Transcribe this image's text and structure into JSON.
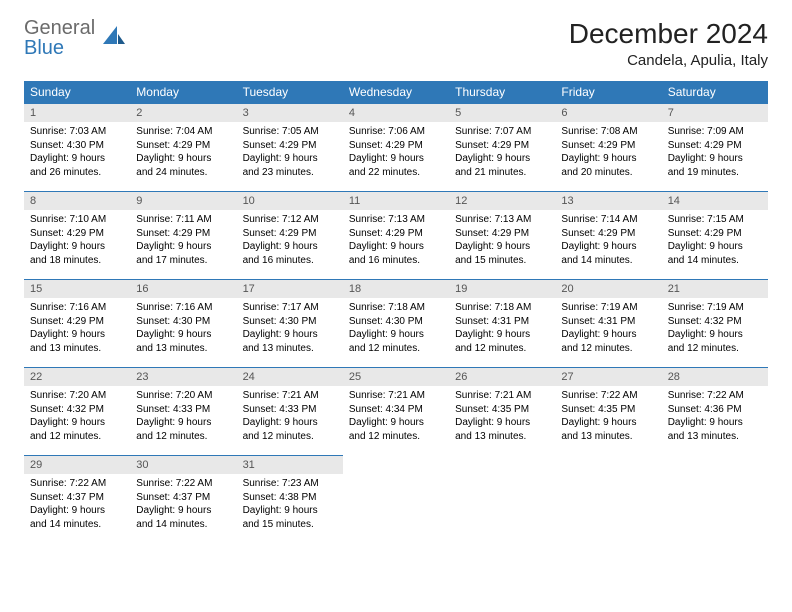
{
  "logo": {
    "text_gray": "General",
    "text_blue": "Blue"
  },
  "header": {
    "title": "December 2024",
    "location": "Candela, Apulia, Italy"
  },
  "colors": {
    "header_bg": "#2f78b7",
    "header_fg": "#ffffff",
    "daynum_bg": "#e8e8e8",
    "daynum_fg": "#555555",
    "border": "#2f78b7",
    "page_bg": "#ffffff",
    "text": "#000000"
  },
  "weekdays": [
    "Sunday",
    "Monday",
    "Tuesday",
    "Wednesday",
    "Thursday",
    "Friday",
    "Saturday"
  ],
  "days": [
    {
      "n": "1",
      "sunrise": "7:03 AM",
      "sunset": "4:30 PM",
      "dl": "9 hours and 26 minutes."
    },
    {
      "n": "2",
      "sunrise": "7:04 AM",
      "sunset": "4:29 PM",
      "dl": "9 hours and 24 minutes."
    },
    {
      "n": "3",
      "sunrise": "7:05 AM",
      "sunset": "4:29 PM",
      "dl": "9 hours and 23 minutes."
    },
    {
      "n": "4",
      "sunrise": "7:06 AM",
      "sunset": "4:29 PM",
      "dl": "9 hours and 22 minutes."
    },
    {
      "n": "5",
      "sunrise": "7:07 AM",
      "sunset": "4:29 PM",
      "dl": "9 hours and 21 minutes."
    },
    {
      "n": "6",
      "sunrise": "7:08 AM",
      "sunset": "4:29 PM",
      "dl": "9 hours and 20 minutes."
    },
    {
      "n": "7",
      "sunrise": "7:09 AM",
      "sunset": "4:29 PM",
      "dl": "9 hours and 19 minutes."
    },
    {
      "n": "8",
      "sunrise": "7:10 AM",
      "sunset": "4:29 PM",
      "dl": "9 hours and 18 minutes."
    },
    {
      "n": "9",
      "sunrise": "7:11 AM",
      "sunset": "4:29 PM",
      "dl": "9 hours and 17 minutes."
    },
    {
      "n": "10",
      "sunrise": "7:12 AM",
      "sunset": "4:29 PM",
      "dl": "9 hours and 16 minutes."
    },
    {
      "n": "11",
      "sunrise": "7:13 AM",
      "sunset": "4:29 PM",
      "dl": "9 hours and 16 minutes."
    },
    {
      "n": "12",
      "sunrise": "7:13 AM",
      "sunset": "4:29 PM",
      "dl": "9 hours and 15 minutes."
    },
    {
      "n": "13",
      "sunrise": "7:14 AM",
      "sunset": "4:29 PM",
      "dl": "9 hours and 14 minutes."
    },
    {
      "n": "14",
      "sunrise": "7:15 AM",
      "sunset": "4:29 PM",
      "dl": "9 hours and 14 minutes."
    },
    {
      "n": "15",
      "sunrise": "7:16 AM",
      "sunset": "4:29 PM",
      "dl": "9 hours and 13 minutes."
    },
    {
      "n": "16",
      "sunrise": "7:16 AM",
      "sunset": "4:30 PM",
      "dl": "9 hours and 13 minutes."
    },
    {
      "n": "17",
      "sunrise": "7:17 AM",
      "sunset": "4:30 PM",
      "dl": "9 hours and 13 minutes."
    },
    {
      "n": "18",
      "sunrise": "7:18 AM",
      "sunset": "4:30 PM",
      "dl": "9 hours and 12 minutes."
    },
    {
      "n": "19",
      "sunrise": "7:18 AM",
      "sunset": "4:31 PM",
      "dl": "9 hours and 12 minutes."
    },
    {
      "n": "20",
      "sunrise": "7:19 AM",
      "sunset": "4:31 PM",
      "dl": "9 hours and 12 minutes."
    },
    {
      "n": "21",
      "sunrise": "7:19 AM",
      "sunset": "4:32 PM",
      "dl": "9 hours and 12 minutes."
    },
    {
      "n": "22",
      "sunrise": "7:20 AM",
      "sunset": "4:32 PM",
      "dl": "9 hours and 12 minutes."
    },
    {
      "n": "23",
      "sunrise": "7:20 AM",
      "sunset": "4:33 PM",
      "dl": "9 hours and 12 minutes."
    },
    {
      "n": "24",
      "sunrise": "7:21 AM",
      "sunset": "4:33 PM",
      "dl": "9 hours and 12 minutes."
    },
    {
      "n": "25",
      "sunrise": "7:21 AM",
      "sunset": "4:34 PM",
      "dl": "9 hours and 12 minutes."
    },
    {
      "n": "26",
      "sunrise": "7:21 AM",
      "sunset": "4:35 PM",
      "dl": "9 hours and 13 minutes."
    },
    {
      "n": "27",
      "sunrise": "7:22 AM",
      "sunset": "4:35 PM",
      "dl": "9 hours and 13 minutes."
    },
    {
      "n": "28",
      "sunrise": "7:22 AM",
      "sunset": "4:36 PM",
      "dl": "9 hours and 13 minutes."
    },
    {
      "n": "29",
      "sunrise": "7:22 AM",
      "sunset": "4:37 PM",
      "dl": "9 hours and 14 minutes."
    },
    {
      "n": "30",
      "sunrise": "7:22 AM",
      "sunset": "4:37 PM",
      "dl": "9 hours and 14 minutes."
    },
    {
      "n": "31",
      "sunrise": "7:23 AM",
      "sunset": "4:38 PM",
      "dl": "9 hours and 15 minutes."
    }
  ],
  "labels": {
    "sunrise": "Sunrise: ",
    "sunset": "Sunset: ",
    "daylight": "Daylight: "
  }
}
